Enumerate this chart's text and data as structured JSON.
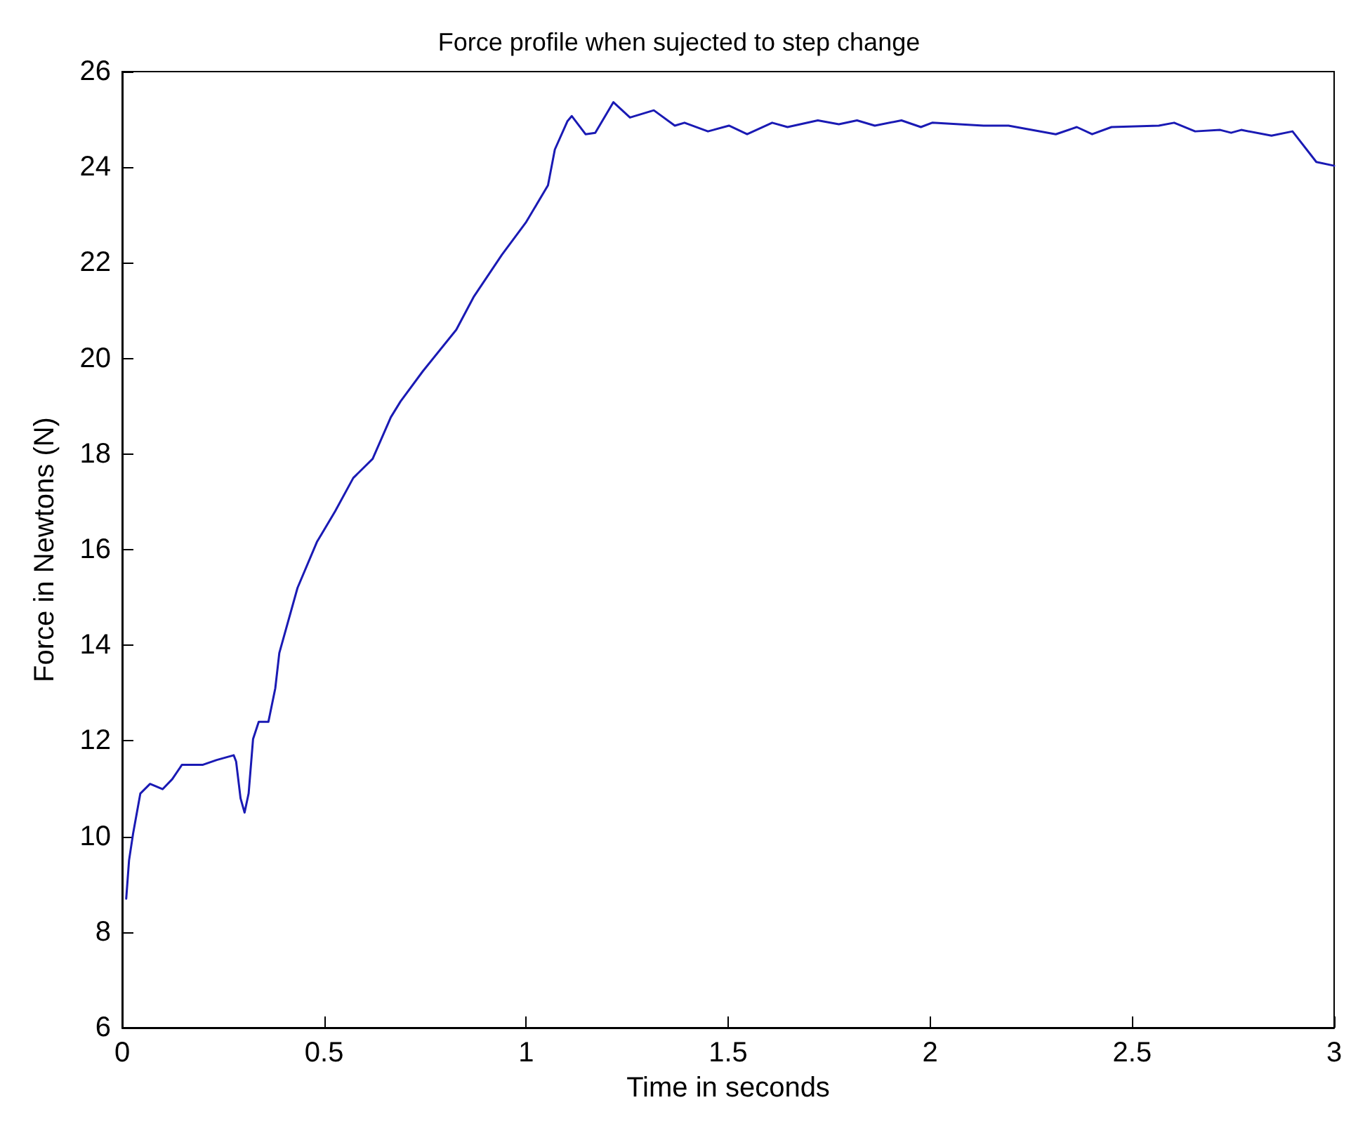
{
  "chart_data": {
    "type": "line",
    "title": "Force profile when sujected to step change",
    "xlabel": "Time in seconds",
    "ylabel": "Force in Newtons (N)",
    "x": [
      0.01,
      0.017,
      0.027,
      0.045,
      0.069,
      0.1,
      0.124,
      0.148,
      0.2,
      0.234,
      0.276,
      0.282,
      0.293,
      0.303,
      0.313,
      0.324,
      0.338,
      0.362,
      0.379,
      0.389,
      0.434,
      0.482,
      0.527,
      0.572,
      0.62,
      0.665,
      0.689,
      0.744,
      0.827,
      0.871,
      0.94,
      0.999,
      1.054,
      1.071,
      1.102,
      1.113,
      1.147,
      1.171,
      1.216,
      1.257,
      1.316,
      1.368,
      1.392,
      1.45,
      1.502,
      1.547,
      1.609,
      1.647,
      1.722,
      1.774,
      1.819,
      1.863,
      1.929,
      1.977,
      2.005,
      2.132,
      2.194,
      2.311,
      2.363,
      2.401,
      2.449,
      2.566,
      2.604,
      2.656,
      2.718,
      2.745,
      2.77,
      2.845,
      2.897,
      2.956,
      3.0
    ],
    "series": [
      {
        "color": "#1a1ab4",
        "values": [
          8.7,
          9.5,
          10.06,
          10.9,
          11.1,
          10.99,
          11.2,
          11.5,
          11.5,
          11.6,
          11.7,
          11.57,
          10.8,
          10.5,
          10.9,
          12.04,
          12.4,
          12.4,
          13.1,
          13.84,
          15.2,
          16.16,
          16.8,
          17.5,
          17.9,
          18.77,
          19.1,
          19.73,
          20.6,
          21.3,
          22.17,
          22.84,
          23.62,
          24.37,
          24.96,
          25.07,
          24.69,
          24.72,
          25.36,
          25.04,
          25.19,
          24.87,
          24.93,
          24.75,
          24.87,
          24.69,
          24.93,
          24.84,
          24.98,
          24.9,
          24.98,
          24.87,
          24.98,
          24.84,
          24.93,
          24.87,
          24.87,
          24.69,
          24.84,
          24.69,
          24.84,
          24.87,
          24.93,
          24.75,
          24.78,
          24.72,
          24.78,
          24.66,
          24.75,
          24.11,
          24.03
        ]
      }
    ],
    "xlim": [
      0,
      3
    ],
    "xticks": [
      0,
      0.5,
      1,
      1.5,
      2,
      2.5,
      3
    ],
    "ylim": [
      6,
      26
    ],
    "yticks": [
      6,
      8,
      10,
      12,
      14,
      16,
      18,
      20,
      22,
      24,
      26
    ],
    "grid": false,
    "marker": "none",
    "line_style": "solid"
  }
}
